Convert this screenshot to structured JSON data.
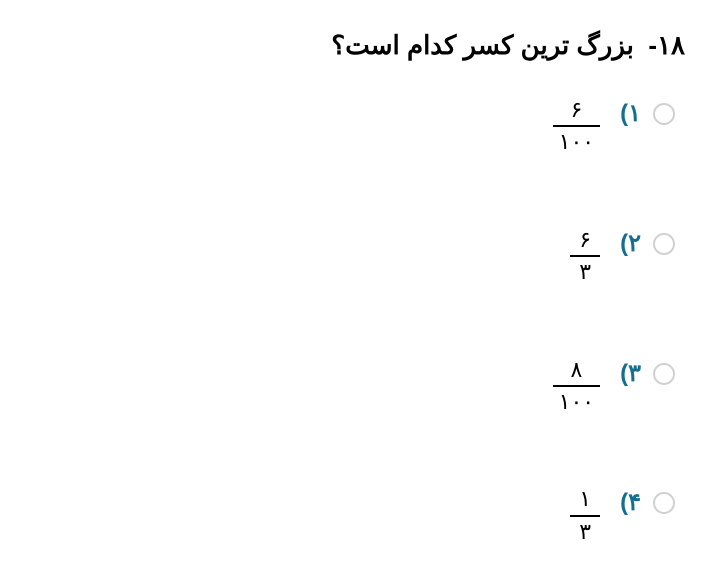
{
  "question": {
    "number": "۱۸-",
    "text": "بزرگ ترین کسر کدام است؟",
    "options": [
      {
        "label": "۱)",
        "numer": "۶",
        "denom": "۱۰۰",
        "narrow": false
      },
      {
        "label": "۲)",
        "numer": "۶",
        "denom": "۳",
        "narrow": true
      },
      {
        "label": "۳)",
        "numer": "۸",
        "denom": "۱۰۰",
        "narrow": false
      },
      {
        "label": "۴)",
        "numer": "۱",
        "denom": "۳",
        "narrow": true
      }
    ]
  },
  "colors": {
    "label": "#166e8f",
    "text": "#000000",
    "radio_border": "#d0d0d0",
    "background": "#ffffff"
  }
}
